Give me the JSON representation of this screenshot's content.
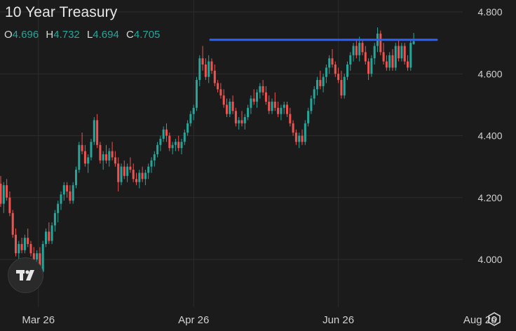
{
  "header": {
    "title": "10 Year Treasury",
    "ohlc": [
      {
        "label": "O",
        "value": "4.696"
      },
      {
        "label": "H",
        "value": "4.732"
      },
      {
        "label": "L",
        "value": "4.694"
      },
      {
        "label": "C",
        "value": "4.705"
      }
    ]
  },
  "colors": {
    "background": "#1b1b1b",
    "grid": "#2c2c2c",
    "up": "#26a69a",
    "down": "#ef5350",
    "reference_line": "#2962ff",
    "axis_text": "#d1d1d1"
  },
  "icons": {
    "logo": "tradingview-logo-icon",
    "settings": "settings-gear-icon"
  },
  "chart_data": {
    "type": "candlestick",
    "title": "10 Year Treasury",
    "xlabel": "",
    "ylabel": "",
    "ylim": [
      3.93,
      4.83
    ],
    "y_ticks": [
      4.0,
      4.2,
      4.4,
      4.6,
      4.8
    ],
    "y_tick_labels": [
      "4.000",
      "4.200",
      "4.400",
      "4.600",
      "4.800"
    ],
    "x_tick_labels": [
      "Mar 26",
      "Apr 26",
      "Jun 26",
      "Aug 26"
    ],
    "x_tick_positions": [
      12.5,
      64,
      112,
      159
    ],
    "grid": true,
    "reference_line": {
      "value": 4.71,
      "from_index": 82,
      "to_index": 169
    },
    "candles": [
      [
        4.245,
        4.27,
        4.17,
        4.18
      ],
      [
        4.18,
        4.25,
        4.15,
        4.24
      ],
      [
        4.24,
        4.26,
        4.19,
        4.2
      ],
      [
        4.2,
        4.22,
        4.14,
        4.15
      ],
      [
        4.15,
        4.16,
        4.07,
        4.08
      ],
      [
        4.08,
        4.1,
        4.01,
        4.02
      ],
      [
        4.02,
        4.06,
        4.0,
        4.05
      ],
      [
        4.05,
        4.07,
        4.02,
        4.03
      ],
      [
        4.03,
        4.08,
        4.02,
        4.07
      ],
      [
        4.07,
        4.1,
        4.04,
        4.05
      ],
      [
        4.05,
        4.06,
        4.01,
        4.02
      ],
      [
        4.02,
        4.04,
        3.99,
        4.0
      ],
      [
        4.0,
        4.03,
        3.98,
        4.02
      ],
      [
        4.02,
        4.04,
        3.95,
        3.96
      ],
      [
        3.96,
        4.06,
        3.94,
        4.05
      ],
      [
        4.05,
        4.1,
        4.04,
        4.09
      ],
      [
        4.09,
        4.12,
        4.05,
        4.06
      ],
      [
        4.06,
        4.12,
        4.05,
        4.11
      ],
      [
        4.11,
        4.16,
        4.09,
        4.15
      ],
      [
        4.15,
        4.19,
        4.12,
        4.18
      ],
      [
        4.18,
        4.22,
        4.16,
        4.21
      ],
      [
        4.21,
        4.25,
        4.19,
        4.24
      ],
      [
        4.24,
        4.25,
        4.2,
        4.22
      ],
      [
        4.22,
        4.24,
        4.18,
        4.19
      ],
      [
        4.19,
        4.25,
        4.18,
        4.24
      ],
      [
        4.24,
        4.3,
        4.23,
        4.29
      ],
      [
        4.29,
        4.38,
        4.28,
        4.37
      ],
      [
        4.37,
        4.41,
        4.34,
        4.35
      ],
      [
        4.35,
        4.37,
        4.3,
        4.31
      ],
      [
        4.31,
        4.34,
        4.28,
        4.33
      ],
      [
        4.33,
        4.39,
        4.32,
        4.38
      ],
      [
        4.38,
        4.46,
        4.37,
        4.45
      ],
      [
        4.45,
        4.47,
        4.36,
        4.37
      ],
      [
        4.37,
        4.38,
        4.31,
        4.32
      ],
      [
        4.32,
        4.35,
        4.29,
        4.34
      ],
      [
        4.34,
        4.37,
        4.31,
        4.32
      ],
      [
        4.32,
        4.36,
        4.3,
        4.35
      ],
      [
        4.35,
        4.38,
        4.32,
        4.33
      ],
      [
        4.33,
        4.35,
        4.3,
        4.31
      ],
      [
        4.31,
        4.33,
        4.22,
        4.25
      ],
      [
        4.25,
        4.31,
        4.24,
        4.3
      ],
      [
        4.3,
        4.32,
        4.26,
        4.27
      ],
      [
        4.27,
        4.31,
        4.25,
        4.3
      ],
      [
        4.3,
        4.33,
        4.28,
        4.29
      ],
      [
        4.29,
        4.31,
        4.25,
        4.26
      ],
      [
        4.26,
        4.28,
        4.24,
        4.25
      ],
      [
        4.25,
        4.29,
        4.23,
        4.28
      ],
      [
        4.28,
        4.3,
        4.25,
        4.26
      ],
      [
        4.26,
        4.29,
        4.24,
        4.28
      ],
      [
        4.28,
        4.31,
        4.26,
        4.3
      ],
      [
        4.3,
        4.33,
        4.28,
        4.32
      ],
      [
        4.32,
        4.35,
        4.3,
        4.34
      ],
      [
        4.34,
        4.38,
        4.33,
        4.37
      ],
      [
        4.37,
        4.4,
        4.35,
        4.39
      ],
      [
        4.39,
        4.43,
        4.38,
        4.42
      ],
      [
        4.42,
        4.44,
        4.38,
        4.4
      ],
      [
        4.4,
        4.41,
        4.35,
        4.36
      ],
      [
        4.36,
        4.38,
        4.34,
        4.37
      ],
      [
        4.37,
        4.39,
        4.35,
        4.38
      ],
      [
        4.38,
        4.4,
        4.35,
        4.36
      ],
      [
        4.36,
        4.39,
        4.34,
        4.38
      ],
      [
        4.38,
        4.42,
        4.37,
        4.41
      ],
      [
        4.41,
        4.45,
        4.4,
        4.44
      ],
      [
        4.44,
        4.48,
        4.43,
        4.47
      ],
      [
        4.47,
        4.5,
        4.45,
        4.49
      ],
      [
        4.49,
        4.59,
        4.48,
        4.58
      ],
      [
        4.58,
        4.66,
        4.56,
        4.65
      ],
      [
        4.65,
        4.69,
        4.61,
        4.63
      ],
      [
        4.63,
        4.65,
        4.58,
        4.59
      ],
      [
        4.59,
        4.66,
        4.57,
        4.64
      ],
      [
        4.64,
        4.65,
        4.6,
        4.61
      ],
      [
        4.61,
        4.63,
        4.56,
        4.57
      ],
      [
        4.57,
        4.58,
        4.54,
        4.55
      ],
      [
        4.55,
        4.57,
        4.52,
        4.53
      ],
      [
        4.53,
        4.55,
        4.49,
        4.5
      ],
      [
        4.5,
        4.52,
        4.46,
        4.47
      ],
      [
        4.47,
        4.52,
        4.46,
        4.51
      ],
      [
        4.51,
        4.53,
        4.47,
        4.48
      ],
      [
        4.48,
        4.49,
        4.43,
        4.44
      ],
      [
        4.44,
        4.46,
        4.42,
        4.45
      ],
      [
        4.45,
        4.48,
        4.43,
        4.44
      ],
      [
        4.44,
        4.47,
        4.42,
        4.46
      ],
      [
        4.46,
        4.5,
        4.45,
        4.49
      ],
      [
        4.49,
        4.53,
        4.47,
        4.52
      ],
      [
        4.52,
        4.55,
        4.5,
        4.51
      ],
      [
        4.51,
        4.55,
        4.49,
        4.54
      ],
      [
        4.54,
        4.57,
        4.52,
        4.56
      ],
      [
        4.56,
        4.58,
        4.53,
        4.54
      ],
      [
        4.54,
        4.56,
        4.5,
        4.51
      ],
      [
        4.51,
        4.53,
        4.47,
        4.48
      ],
      [
        4.48,
        4.52,
        4.47,
        4.51
      ],
      [
        4.51,
        4.54,
        4.48,
        4.49
      ],
      [
        4.49,
        4.51,
        4.46,
        4.47
      ],
      [
        4.47,
        4.5,
        4.45,
        4.49
      ],
      [
        4.49,
        4.51,
        4.47,
        4.5
      ],
      [
        4.5,
        4.51,
        4.46,
        4.47
      ],
      [
        4.47,
        4.49,
        4.43,
        4.44
      ],
      [
        4.44,
        4.45,
        4.4,
        4.41
      ],
      [
        4.41,
        4.42,
        4.37,
        4.38
      ],
      [
        4.38,
        4.41,
        4.36,
        4.4
      ],
      [
        4.4,
        4.42,
        4.37,
        4.38
      ],
      [
        4.38,
        4.45,
        4.37,
        4.44
      ],
      [
        4.44,
        4.49,
        4.43,
        4.48
      ],
      [
        4.48,
        4.53,
        4.47,
        4.52
      ],
      [
        4.52,
        4.56,
        4.5,
        4.55
      ],
      [
        4.55,
        4.59,
        4.53,
        4.58
      ],
      [
        4.58,
        4.61,
        4.55,
        4.56
      ],
      [
        4.56,
        4.6,
        4.54,
        4.59
      ],
      [
        4.59,
        4.63,
        4.57,
        4.62
      ],
      [
        4.62,
        4.66,
        4.6,
        4.65
      ],
      [
        4.65,
        4.68,
        4.62,
        4.63
      ],
      [
        4.63,
        4.64,
        4.59,
        4.6
      ],
      [
        4.6,
        4.62,
        4.57,
        4.58
      ],
      [
        4.58,
        4.61,
        4.52,
        4.53
      ],
      [
        4.53,
        4.6,
        4.52,
        4.59
      ],
      [
        4.59,
        4.64,
        4.58,
        4.63
      ],
      [
        4.63,
        4.67,
        4.61,
        4.66
      ],
      [
        4.66,
        4.7,
        4.64,
        4.69
      ],
      [
        4.69,
        4.71,
        4.65,
        4.66
      ],
      [
        4.66,
        4.72,
        4.64,
        4.7
      ],
      [
        4.7,
        4.71,
        4.66,
        4.67
      ],
      [
        4.67,
        4.69,
        4.63,
        4.64
      ],
      [
        4.64,
        4.65,
        4.58,
        4.6
      ],
      [
        4.6,
        4.66,
        4.59,
        4.65
      ],
      [
        4.65,
        4.7,
        4.63,
        4.69
      ],
      [
        4.69,
        4.75,
        4.67,
        4.73
      ],
      [
        4.73,
        4.74,
        4.66,
        4.67
      ],
      [
        4.67,
        4.7,
        4.63,
        4.64
      ],
      [
        4.64,
        4.66,
        4.61,
        4.62
      ],
      [
        4.62,
        4.67,
        4.61,
        4.66
      ],
      [
        4.66,
        4.68,
        4.61,
        4.62
      ],
      [
        4.62,
        4.7,
        4.61,
        4.69
      ],
      [
        4.69,
        4.71,
        4.64,
        4.65
      ],
      [
        4.65,
        4.7,
        4.64,
        4.69
      ],
      [
        4.69,
        4.7,
        4.63,
        4.64
      ],
      [
        4.64,
        4.66,
        4.61,
        4.62
      ],
      [
        4.62,
        4.71,
        4.61,
        4.7
      ],
      [
        4.696,
        4.732,
        4.694,
        4.705
      ]
    ]
  }
}
